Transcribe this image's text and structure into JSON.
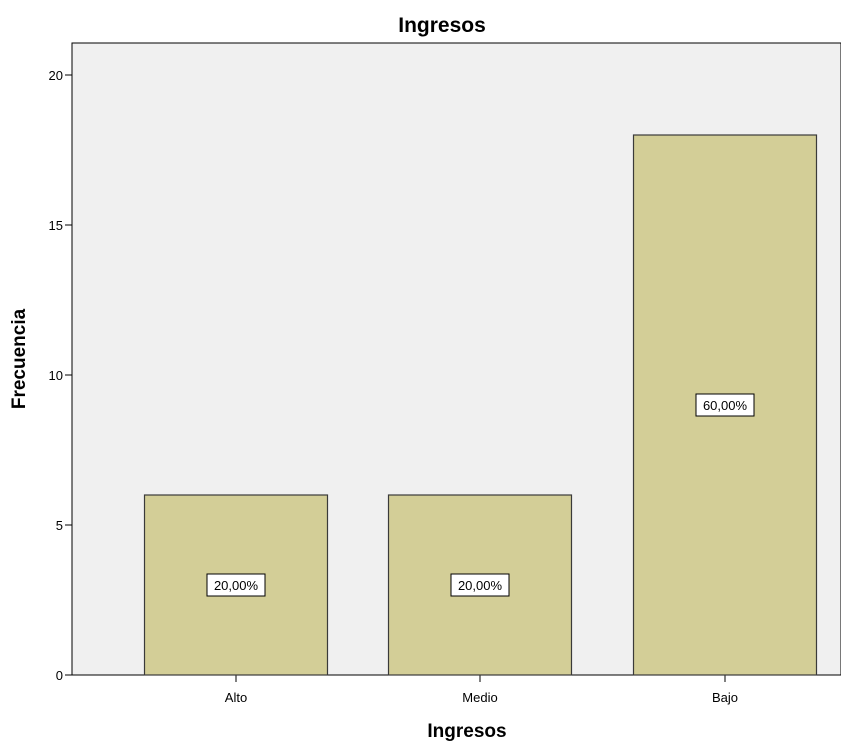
{
  "chart_data": {
    "type": "bar",
    "title": "Ingresos",
    "xlabel": "Ingresos",
    "ylabel": "Frecuencia",
    "categories": [
      "Alto",
      "Medio",
      "Bajo"
    ],
    "values": [
      6,
      6,
      18
    ],
    "data_labels": [
      "20,00%",
      "20,00%",
      "60,00%"
    ],
    "ylim": [
      0,
      21
    ],
    "yticks": [
      0,
      5,
      10,
      15,
      20
    ],
    "grid": false,
    "colors": {
      "plot_background": "#f0f0f0",
      "bar_fill": "#d3ce97",
      "bar_stroke": "#3a3a3a",
      "label_box": "#ffffff"
    }
  }
}
